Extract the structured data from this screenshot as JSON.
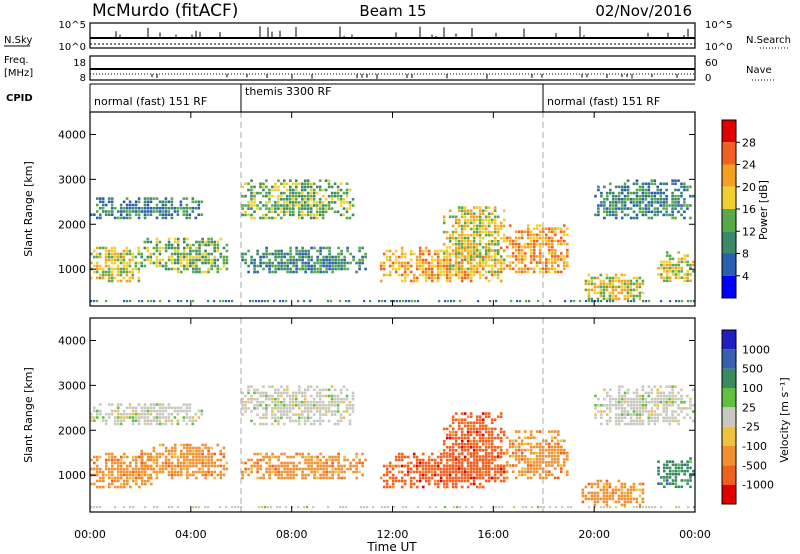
{
  "header": {
    "site": "McMurdo (fitACF)",
    "beam": "Beam 15",
    "date": "02/Nov/2016"
  },
  "aux_panels": {
    "nsky_label": "N.Sky",
    "nsearch_label": "N.Search",
    "freq_label": "Freq.",
    "freq_unit": "[MHz]",
    "nave_label": "Nave",
    "cpid_label": "CPID",
    "noise_ticks_left": [
      "10^5",
      "10^0"
    ],
    "noise_ticks_right": [
      "10^5",
      "10^0"
    ],
    "freq_ticks": [
      "18",
      "8"
    ],
    "nave_ticks": [
      "60",
      "0"
    ],
    "cpid_segments": [
      {
        "label": "normal (fast) 151 RF",
        "start": 0,
        "end": 6
      },
      {
        "label": "themis 3300 RF",
        "start": 6,
        "end": 18
      },
      {
        "label": "normal (fast) 151 RF",
        "start": 18,
        "end": 24
      }
    ]
  },
  "colors": {
    "power_scale": [
      "#0000ff",
      "#2a5fb0",
      "#3a8a6a",
      "#58a94a",
      "#f0d030",
      "#f4a020",
      "#f06020",
      "#e00000"
    ],
    "velocity_scale": [
      "#2020c0",
      "#3a5fb0",
      "#3a8a60",
      "#60c040",
      "#c8c8c0",
      "#f0c040",
      "#f09030",
      "#f06020",
      "#e00000"
    ],
    "grid_dash": "#999999"
  },
  "chart_data": [
    {
      "type": "heatmap",
      "title": "",
      "panel": "power",
      "xlabel": "",
      "ylabel": "Slant Range [km]",
      "xlim": [
        0,
        24
      ],
      "ylim": [
        180,
        4500
      ],
      "x_ticks": [
        "00:00",
        "04:00",
        "08:00",
        "12:00",
        "16:00",
        "20:00",
        "00:00"
      ],
      "y_ticks": [
        "1000",
        "2000",
        "3000",
        "4000"
      ],
      "colorbar_label": "Power [dB]",
      "colorbar_ticks": [
        "4",
        "8",
        "12",
        "16",
        "20",
        "24",
        "28"
      ],
      "scatter_bands": [
        {
          "t0": 0.0,
          "t1": 2.0,
          "r0": 700,
          "r1": 1500,
          "level": 20
        },
        {
          "t0": 0.0,
          "t1": 4.5,
          "r0": 2100,
          "r1": 2600,
          "level": 10
        },
        {
          "t0": 2.0,
          "t1": 5.5,
          "r0": 900,
          "r1": 1700,
          "level": 14
        },
        {
          "t0": 6.0,
          "t1": 10.5,
          "r0": 2100,
          "r1": 3000,
          "level": 14
        },
        {
          "t0": 6.0,
          "t1": 11.0,
          "r0": 900,
          "r1": 1500,
          "level": 10
        },
        {
          "t0": 11.5,
          "t1": 16.5,
          "r0": 700,
          "r1": 1500,
          "level": 22
        },
        {
          "t0": 14.0,
          "t1": 16.5,
          "r0": 900,
          "r1": 2400,
          "level": 18
        },
        {
          "t0": 16.5,
          "t1": 19.0,
          "r0": 900,
          "r1": 2000,
          "level": 22
        },
        {
          "t0": 19.5,
          "t1": 22.0,
          "r0": 300,
          "r1": 900,
          "level": 20
        },
        {
          "t0": 20.0,
          "t1": 24.0,
          "r0": 2100,
          "r1": 3000,
          "level": 10
        },
        {
          "t0": 22.5,
          "t1": 24.0,
          "r0": 700,
          "r1": 1400,
          "level": 20
        }
      ]
    },
    {
      "type": "heatmap",
      "title": "",
      "panel": "velocity",
      "xlabel": "Time UT",
      "ylabel": "Slant Range [km]",
      "xlim": [
        0,
        24
      ],
      "ylim": [
        180,
        4500
      ],
      "x_ticks": [
        "00:00",
        "04:00",
        "08:00",
        "12:00",
        "16:00",
        "20:00",
        "00:00"
      ],
      "y_ticks": [
        "1000",
        "2000",
        "3000",
        "4000"
      ],
      "colorbar_label": "Velocity [m s⁻¹]",
      "colorbar_ticks": [
        "1000",
        "500",
        "100",
        "25",
        "-25",
        "-100",
        "-500",
        "-1000"
      ],
      "scatter_bands": [
        {
          "t0": 0.0,
          "t1": 2.5,
          "r0": 700,
          "r1": 1500,
          "level": -100
        },
        {
          "t0": 0.0,
          "t1": 4.5,
          "r0": 2100,
          "r1": 2600,
          "level": 0
        },
        {
          "t0": 2.0,
          "t1": 5.5,
          "r0": 900,
          "r1": 1700,
          "level": -100
        },
        {
          "t0": 6.0,
          "t1": 10.5,
          "r0": 2100,
          "r1": 3000,
          "level": 0
        },
        {
          "t0": 6.0,
          "t1": 11.0,
          "r0": 900,
          "r1": 1500,
          "level": -100
        },
        {
          "t0": 11.5,
          "t1": 16.5,
          "r0": 700,
          "r1": 1500,
          "level": -500
        },
        {
          "t0": 14.0,
          "t1": 16.5,
          "r0": 900,
          "r1": 2400,
          "level": -500
        },
        {
          "t0": 16.5,
          "t1": 19.0,
          "r0": 900,
          "r1": 2000,
          "level": -100
        },
        {
          "t0": 19.5,
          "t1": 22.0,
          "r0": 300,
          "r1": 900,
          "level": -100
        },
        {
          "t0": 20.0,
          "t1": 24.0,
          "r0": 2100,
          "r1": 3000,
          "level": 0
        },
        {
          "t0": 22.5,
          "t1": 24.0,
          "r0": 700,
          "r1": 1400,
          "level": 100
        }
      ]
    }
  ]
}
